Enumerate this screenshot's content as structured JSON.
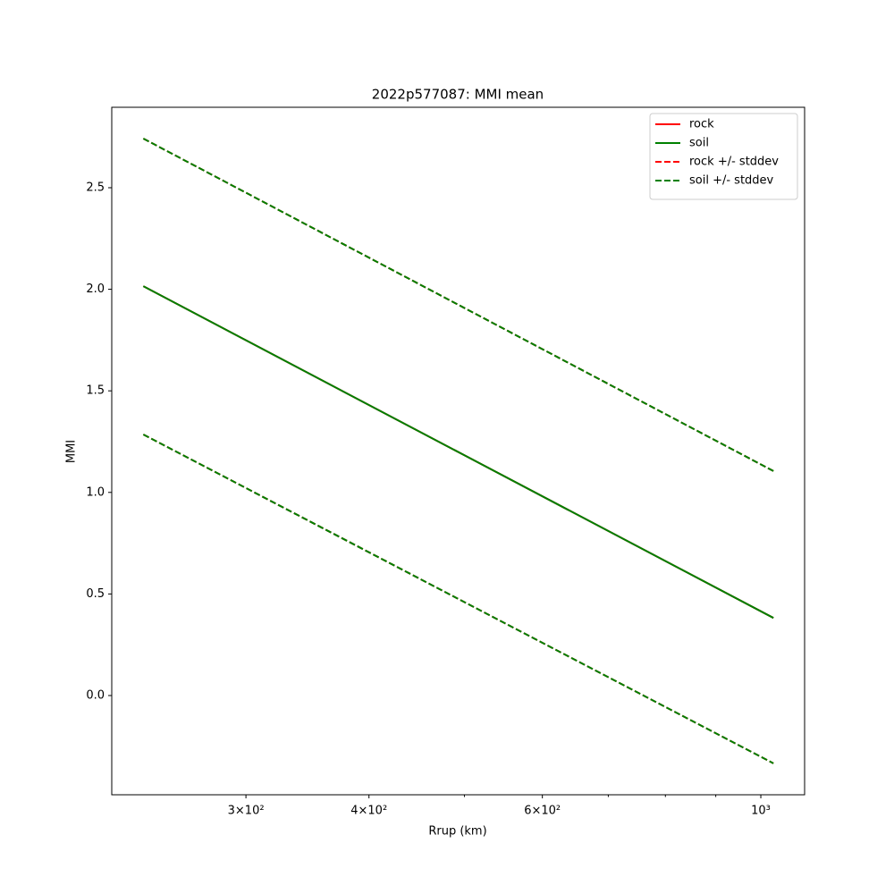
{
  "chart_data": {
    "type": "line",
    "title": "2022p577087: MMI mean",
    "xlabel": "Rrup (km)",
    "ylabel": "MMI",
    "xscale": "log",
    "x": [
      236,
      1030
    ],
    "series": [
      {
        "name": "rock",
        "color": "#ff0000",
        "dash": false,
        "values": [
          2.015,
          0.382
        ]
      },
      {
        "name": "soil",
        "color": "#008000",
        "dash": false,
        "values": [
          2.015,
          0.382
        ]
      },
      {
        "name": "rock +/- stddev",
        "color": "#ff0000",
        "dash": true,
        "values": [
          2.742,
          1.105
        ],
        "lower": [
          1.285,
          -0.334
        ]
      },
      {
        "name": "soil +/- stddev",
        "color": "#008000",
        "dash": true,
        "values": [
          2.742,
          1.105
        ],
        "lower": [
          1.285,
          -0.334
        ]
      }
    ],
    "xlim": [
      219.2,
      1107.8
    ],
    "ylim": [
      -0.4886,
      2.896
    ],
    "xticks": [
      {
        "value": 300,
        "label": "3×10²"
      },
      {
        "value": 400,
        "label": "4×10²"
      },
      {
        "value": 600,
        "label": "6×10²"
      },
      {
        "value": 1000,
        "label": "10³"
      }
    ],
    "xminorticks": [
      500,
      700,
      800,
      900
    ],
    "yticks": [
      {
        "value": 0,
        "label": "0.0"
      },
      {
        "value": 0.5,
        "label": "0.5"
      },
      {
        "value": 1,
        "label": "1.0"
      },
      {
        "value": 1.5,
        "label": "1.5"
      },
      {
        "value": 2,
        "label": "2.0"
      },
      {
        "value": 2.5,
        "label": "2.5"
      }
    ],
    "legend": "upper right",
    "grid": false
  }
}
